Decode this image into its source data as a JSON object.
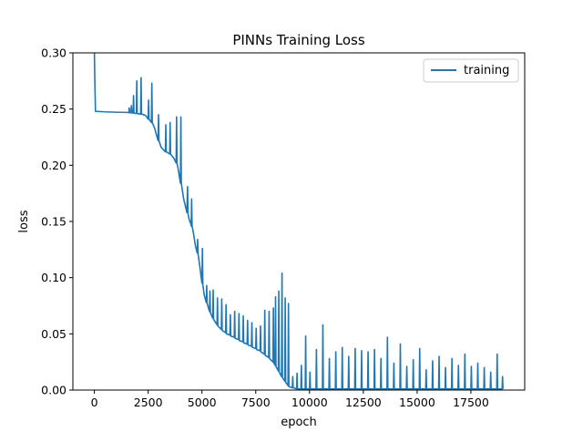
{
  "chart_data": {
    "type": "line",
    "title": "PINNs Training Loss",
    "xlabel": "epoch",
    "ylabel": "loss",
    "xlim": [
      -1000,
      20000
    ],
    "ylim": [
      0.0,
      0.3
    ],
    "xticks": [
      0,
      2500,
      5000,
      7500,
      10000,
      12500,
      15000,
      17500
    ],
    "xtick_labels": [
      "0",
      "2500",
      "5000",
      "7500",
      "10000",
      "12500",
      "15000",
      "17500"
    ],
    "yticks": [
      0.0,
      0.05,
      0.1,
      0.15,
      0.2,
      0.25,
      0.3
    ],
    "ytick_labels": [
      "0.00",
      "0.05",
      "0.10",
      "0.15",
      "0.20",
      "0.25",
      "0.30"
    ],
    "grid": false,
    "legend": {
      "position": "top-right",
      "entries": [
        "training"
      ]
    },
    "series": [
      {
        "name": "training",
        "color": "#1f77b4",
        "points": [
          [
            0,
            0.3
          ],
          [
            20,
            0.275
          ],
          [
            50,
            0.248
          ],
          [
            500,
            0.2475
          ],
          [
            1000,
            0.2472
          ],
          [
            1500,
            0.247
          ],
          [
            1600,
            0.2468
          ],
          [
            1620,
            0.251
          ],
          [
            1640,
            0.2468
          ],
          [
            1700,
            0.2466
          ],
          [
            1720,
            0.253
          ],
          [
            1740,
            0.2466
          ],
          [
            1800,
            0.2464
          ],
          [
            1820,
            0.262
          ],
          [
            1840,
            0.2464
          ],
          [
            1950,
            0.246
          ],
          [
            1970,
            0.275
          ],
          [
            1990,
            0.246
          ],
          [
            2150,
            0.2455
          ],
          [
            2170,
            0.278
          ],
          [
            2190,
            0.2455
          ],
          [
            2300,
            0.245
          ],
          [
            2400,
            0.244
          ],
          [
            2500,
            0.241
          ],
          [
            2520,
            0.258
          ],
          [
            2540,
            0.241
          ],
          [
            2650,
            0.238
          ],
          [
            2670,
            0.273
          ],
          [
            2690,
            0.238
          ],
          [
            2800,
            0.233
          ],
          [
            2900,
            0.226
          ],
          [
            2960,
            0.222
          ],
          [
            2980,
            0.245
          ],
          [
            3000,
            0.222
          ],
          [
            3100,
            0.216
          ],
          [
            3300,
            0.212
          ],
          [
            3320,
            0.236
          ],
          [
            3340,
            0.212
          ],
          [
            3500,
            0.21
          ],
          [
            3520,
            0.238
          ],
          [
            3540,
            0.21
          ],
          [
            3700,
            0.206
          ],
          [
            3800,
            0.202
          ],
          [
            3820,
            0.243
          ],
          [
            3840,
            0.202
          ],
          [
            3900,
            0.196
          ],
          [
            3950,
            0.19
          ],
          [
            4000,
            0.184
          ],
          [
            4020,
            0.243
          ],
          [
            4040,
            0.184
          ],
          [
            4150,
            0.17
          ],
          [
            4300,
            0.158
          ],
          [
            4330,
            0.181
          ],
          [
            4350,
            0.157
          ],
          [
            4400,
            0.152
          ],
          [
            4480,
            0.148
          ],
          [
            4500,
            0.146
          ],
          [
            4520,
            0.17
          ],
          [
            4540,
            0.146
          ],
          [
            4600,
            0.14
          ],
          [
            4700,
            0.128
          ],
          [
            4780,
            0.122
          ],
          [
            4800,
            0.134
          ],
          [
            4820,
            0.121
          ],
          [
            4900,
            0.11
          ],
          [
            5000,
            0.095
          ],
          [
            5020,
            0.126
          ],
          [
            5040,
            0.094
          ],
          [
            5100,
            0.085
          ],
          [
            5200,
            0.078
          ],
          [
            5220,
            0.093
          ],
          [
            5240,
            0.077
          ],
          [
            5350,
            0.07
          ],
          [
            5370,
            0.088
          ],
          [
            5390,
            0.069
          ],
          [
            5500,
            0.064
          ],
          [
            5520,
            0.089
          ],
          [
            5540,
            0.063
          ],
          [
            5700,
            0.058
          ],
          [
            5720,
            0.082
          ],
          [
            5740,
            0.057
          ],
          [
            5900,
            0.054
          ],
          [
            5920,
            0.081
          ],
          [
            5940,
            0.053
          ],
          [
            6100,
            0.051
          ],
          [
            6120,
            0.076
          ],
          [
            6140,
            0.05
          ],
          [
            6300,
            0.049
          ],
          [
            6320,
            0.067
          ],
          [
            6340,
            0.048
          ],
          [
            6500,
            0.047
          ],
          [
            6520,
            0.07
          ],
          [
            6540,
            0.046
          ],
          [
            6700,
            0.045
          ],
          [
            6720,
            0.068
          ],
          [
            6740,
            0.044
          ],
          [
            6900,
            0.043
          ],
          [
            6920,
            0.066
          ],
          [
            6940,
            0.042
          ],
          [
            7100,
            0.041
          ],
          [
            7120,
            0.062
          ],
          [
            7140,
            0.04
          ],
          [
            7300,
            0.039
          ],
          [
            7320,
            0.06
          ],
          [
            7340,
            0.038
          ],
          [
            7500,
            0.037
          ],
          [
            7520,
            0.055
          ],
          [
            7540,
            0.036
          ],
          [
            7700,
            0.035
          ],
          [
            7720,
            0.057
          ],
          [
            7740,
            0.034
          ],
          [
            7900,
            0.032
          ],
          [
            7920,
            0.071
          ],
          [
            7940,
            0.031
          ],
          [
            8100,
            0.029
          ],
          [
            8120,
            0.07
          ],
          [
            8140,
            0.028
          ],
          [
            8300,
            0.025
          ],
          [
            8320,
            0.073
          ],
          [
            8340,
            0.024
          ],
          [
            8400,
            0.022
          ],
          [
            8420,
            0.083
          ],
          [
            8440,
            0.021
          ],
          [
            8550,
            0.017
          ],
          [
            8570,
            0.088
          ],
          [
            8590,
            0.016
          ],
          [
            8700,
            0.012
          ],
          [
            8720,
            0.104
          ],
          [
            8740,
            0.011
          ],
          [
            8850,
            0.008
          ],
          [
            8870,
            0.082
          ],
          [
            8890,
            0.007
          ],
          [
            9000,
            0.004
          ],
          [
            9020,
            0.077
          ],
          [
            9040,
            0.003
          ],
          [
            9200,
            0.002
          ],
          [
            9220,
            0.012
          ],
          [
            9240,
            0.002
          ],
          [
            9400,
            0.001
          ],
          [
            9420,
            0.015
          ],
          [
            9440,
            0.001
          ],
          [
            9600,
            0.001
          ],
          [
            9620,
            0.022
          ],
          [
            9640,
            0.001
          ],
          [
            9800,
            0.001
          ],
          [
            9820,
            0.048
          ],
          [
            9840,
            0.001
          ],
          [
            10000,
            0.001
          ],
          [
            10020,
            0.016
          ],
          [
            10040,
            0.001
          ],
          [
            10300,
            0.001
          ],
          [
            10320,
            0.036
          ],
          [
            10340,
            0.001
          ],
          [
            10600,
            0.001
          ],
          [
            10620,
            0.058
          ],
          [
            10640,
            0.001
          ],
          [
            10900,
            0.001
          ],
          [
            10920,
            0.028
          ],
          [
            10940,
            0.001
          ],
          [
            11200,
            0.001
          ],
          [
            11220,
            0.034
          ],
          [
            11240,
            0.001
          ],
          [
            11500,
            0.001
          ],
          [
            11520,
            0.038
          ],
          [
            11540,
            0.001
          ],
          [
            11800,
            0.001
          ],
          [
            11820,
            0.03
          ],
          [
            11840,
            0.001
          ],
          [
            12100,
            0.001
          ],
          [
            12120,
            0.037
          ],
          [
            12140,
            0.001
          ],
          [
            12400,
            0.001
          ],
          [
            12420,
            0.035
          ],
          [
            12440,
            0.001
          ],
          [
            12700,
            0.001
          ],
          [
            12720,
            0.034
          ],
          [
            12740,
            0.001
          ],
          [
            13000,
            0.001
          ],
          [
            13020,
            0.036
          ],
          [
            13040,
            0.001
          ],
          [
            13300,
            0.001
          ],
          [
            13320,
            0.028
          ],
          [
            13340,
            0.001
          ],
          [
            13600,
            0.001
          ],
          [
            13620,
            0.047
          ],
          [
            13640,
            0.001
          ],
          [
            13900,
            0.001
          ],
          [
            13920,
            0.024
          ],
          [
            13940,
            0.001
          ],
          [
            14200,
            0.001
          ],
          [
            14220,
            0.041
          ],
          [
            14240,
            0.001
          ],
          [
            14500,
            0.001
          ],
          [
            14520,
            0.021
          ],
          [
            14540,
            0.001
          ],
          [
            14800,
            0.001
          ],
          [
            14820,
            0.027
          ],
          [
            14840,
            0.001
          ],
          [
            15100,
            0.001
          ],
          [
            15120,
            0.037
          ],
          [
            15140,
            0.001
          ],
          [
            15400,
            0.001
          ],
          [
            15420,
            0.018
          ],
          [
            15440,
            0.001
          ],
          [
            15700,
            0.001
          ],
          [
            15720,
            0.026
          ],
          [
            15740,
            0.001
          ],
          [
            16000,
            0.001
          ],
          [
            16020,
            0.03
          ],
          [
            16040,
            0.001
          ],
          [
            16300,
            0.001
          ],
          [
            16320,
            0.02
          ],
          [
            16340,
            0.001
          ],
          [
            16600,
            0.001
          ],
          [
            16620,
            0.028
          ],
          [
            16640,
            0.001
          ],
          [
            16900,
            0.001
          ],
          [
            16920,
            0.022
          ],
          [
            16940,
            0.001
          ],
          [
            17200,
            0.001
          ],
          [
            17220,
            0.032
          ],
          [
            17240,
            0.001
          ],
          [
            17500,
            0.001
          ],
          [
            17520,
            0.021
          ],
          [
            17540,
            0.001
          ],
          [
            17800,
            0.001
          ],
          [
            17820,
            0.024
          ],
          [
            17840,
            0.001
          ],
          [
            18100,
            0.001
          ],
          [
            18120,
            0.02
          ],
          [
            18140,
            0.001
          ],
          [
            18400,
            0.001
          ],
          [
            18420,
            0.016
          ],
          [
            18440,
            0.001
          ],
          [
            18700,
            0.001
          ],
          [
            18720,
            0.032
          ],
          [
            18740,
            0.001
          ],
          [
            18950,
            0.001
          ],
          [
            18970,
            0.012
          ],
          [
            18990,
            0.001
          ]
        ]
      }
    ]
  }
}
